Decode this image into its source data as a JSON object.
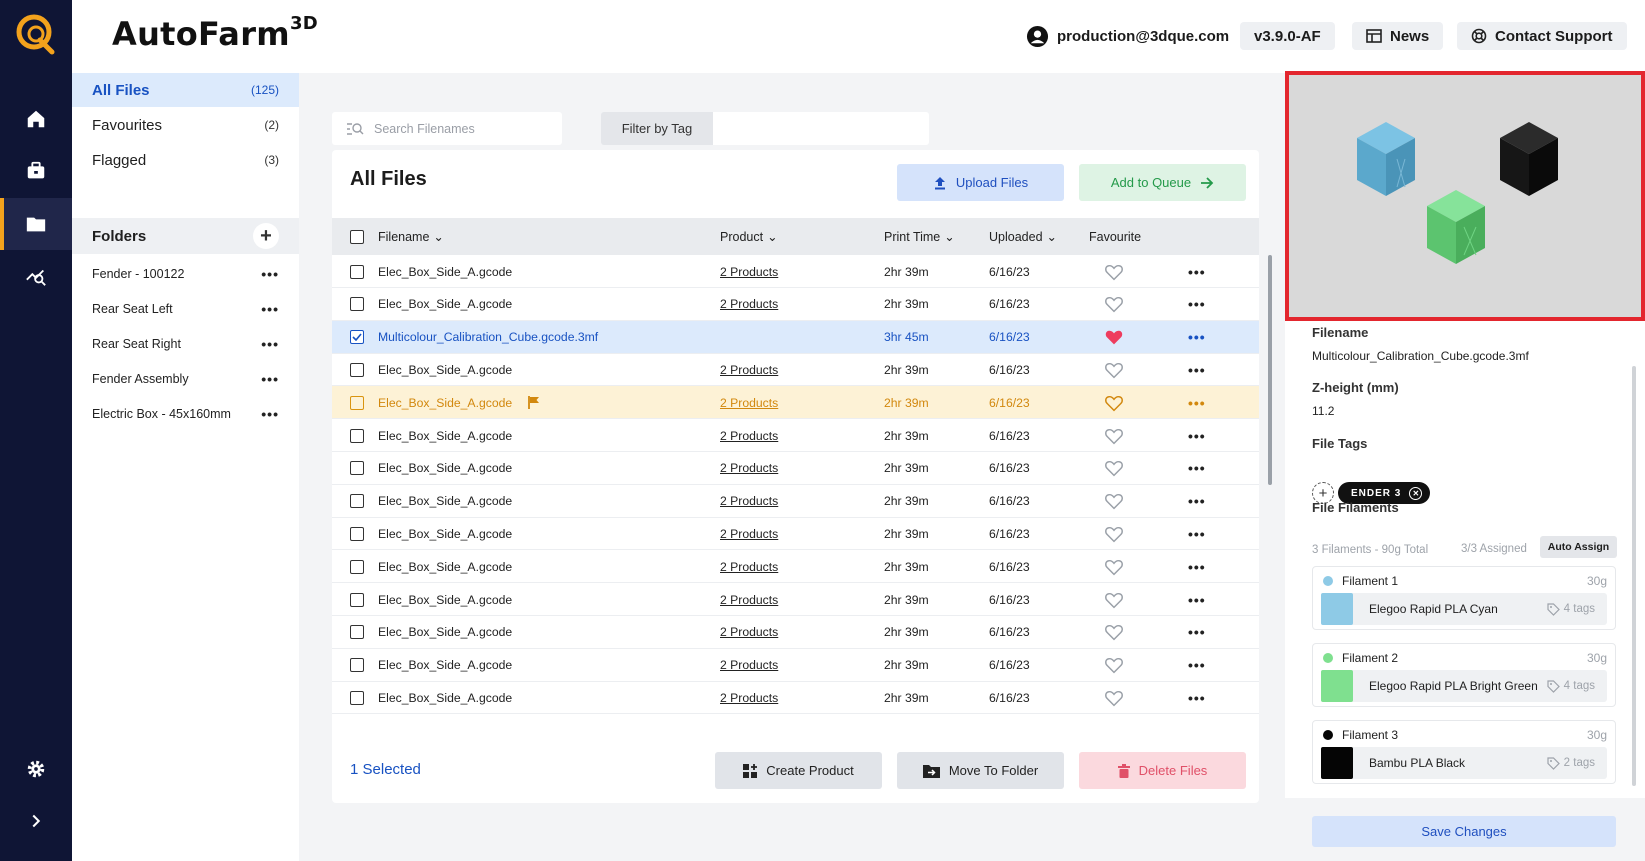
{
  "brand": {
    "name": "AutoFarm",
    "suffix": "3D"
  },
  "header": {
    "user_email": "production@3dque.com",
    "version": "v3.9.0-AF",
    "news_label": "News",
    "support_label": "Contact Support"
  },
  "rail": {
    "items": [
      "home-icon",
      "briefcase-icon",
      "folder-icon",
      "analytics-icon",
      "settings-icon",
      "chevron-right-icon"
    ],
    "active_color": "#f3a21c",
    "background": "#0f1535"
  },
  "filenav": {
    "groups": [
      {
        "label": "All Files",
        "count": "(125)"
      },
      {
        "label": "Favourites",
        "count": "(2)"
      },
      {
        "label": "Flagged",
        "count": "(3)"
      }
    ],
    "folders_title": "Folders",
    "folders": [
      "Fender - 100122",
      "Rear Seat Left",
      "Rear Seat Right",
      "Fender Assembly",
      "Electric Box - 45x160mm"
    ]
  },
  "toolbar": {
    "search_placeholder": "Search Filenames",
    "filter_label": "Filter by Tag"
  },
  "files": {
    "title": "All Files",
    "upload_label": "Upload Files",
    "queue_label": "Add to Queue",
    "columns": {
      "filename": "Filename",
      "product": "Product",
      "print_time": "Print Time",
      "uploaded": "Uploaded",
      "favourite": "Favourite"
    },
    "rows": [
      {
        "name": "Elec_Box_Side_A.gcode",
        "product": "2 Products",
        "time": "2hr 39m",
        "date": "6/16/23",
        "state": "normal"
      },
      {
        "name": "Elec_Box_Side_A.gcode",
        "product": "2 Products",
        "time": "2hr 39m",
        "date": "6/16/23",
        "state": "normal"
      },
      {
        "name": "Multicolour_Calibration_Cube.gcode.3mf",
        "product": "",
        "time": "3hr 45m",
        "date": "6/16/23",
        "state": "selected"
      },
      {
        "name": "Elec_Box_Side_A.gcode",
        "product": "2 Products",
        "time": "2hr 39m",
        "date": "6/16/23",
        "state": "normal"
      },
      {
        "name": "Elec_Box_Side_A.gcode",
        "product": "2 Products",
        "time": "2hr 39m",
        "date": "6/16/23",
        "state": "flagged"
      },
      {
        "name": "Elec_Box_Side_A.gcode",
        "product": "2 Products",
        "time": "2hr 39m",
        "date": "6/16/23",
        "state": "normal"
      },
      {
        "name": "Elec_Box_Side_A.gcode",
        "product": "2 Products",
        "time": "2hr 39m",
        "date": "6/16/23",
        "state": "normal"
      },
      {
        "name": "Elec_Box_Side_A.gcode",
        "product": "2 Products",
        "time": "2hr 39m",
        "date": "6/16/23",
        "state": "normal"
      },
      {
        "name": "Elec_Box_Side_A.gcode",
        "product": "2 Products",
        "time": "2hr 39m",
        "date": "6/16/23",
        "state": "normal"
      },
      {
        "name": "Elec_Box_Side_A.gcode",
        "product": "2 Products",
        "time": "2hr 39m",
        "date": "6/16/23",
        "state": "normal"
      },
      {
        "name": "Elec_Box_Side_A.gcode",
        "product": "2 Products",
        "time": "2hr 39m",
        "date": "6/16/23",
        "state": "normal"
      },
      {
        "name": "Elec_Box_Side_A.gcode",
        "product": "2 Products",
        "time": "2hr 39m",
        "date": "6/16/23",
        "state": "normal"
      },
      {
        "name": "Elec_Box_Side_A.gcode",
        "product": "2 Products",
        "time": "2hr 39m",
        "date": "6/16/23",
        "state": "normal"
      },
      {
        "name": "Elec_Box_Side_A.gcode",
        "product": "2 Products",
        "time": "2hr 39m",
        "date": "6/16/23",
        "state": "normal"
      }
    ],
    "selected_count": "1 Selected",
    "create_label": "Create Product",
    "move_label": "Move To Folder",
    "delete_label": "Delete Files"
  },
  "details": {
    "filename_label": "Filename",
    "filename": "Multicolour_Calibration_Cube.gcode.3mf",
    "zheight_label": "Z-height (mm)",
    "zheight": "11.2",
    "tags_label": "File Tags",
    "tags": [
      "ENDER 3"
    ],
    "filaments_label": "File Filaments",
    "filaments_summary": "3 Filaments - 90g Total",
    "assigned": "3/3 Assigned",
    "auto_assign_label": "Auto Assign",
    "filaments": [
      {
        "label": "Filament 1",
        "weight": "30g",
        "material": "Elegoo Rapid PLA Cyan",
        "tags": "4 tags",
        "color": "#8ecae6"
      },
      {
        "label": "Filament 2",
        "weight": "30g",
        "material": "Elegoo Rapid PLA Bright Green",
        "tags": "4 tags",
        "color": "#7fe08f"
      },
      {
        "label": "Filament 3",
        "weight": "30g",
        "material": "Bambu PLA Black",
        "tags": "2 tags",
        "color": "#050505"
      }
    ],
    "save_label": "Save Changes"
  },
  "colors": {
    "accent_blue": "#1852c2",
    "selected_row": "#dceafc",
    "flagged_row": "#fdf2d6",
    "favourite_heart": "#ee3c5e",
    "preview_highlight": "#e3262e"
  }
}
